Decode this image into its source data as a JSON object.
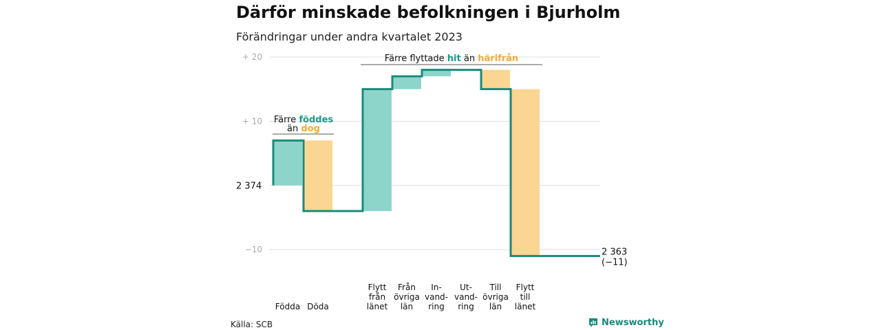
{
  "title": "Därför minskade befolkningen i Bjurholm",
  "subtitle": "Förändringar under andra kvartalet 2023",
  "source": "Källa: SCB",
  "brand": {
    "name": "Newsworthy",
    "icon": "newsworthy-logo-icon"
  },
  "colors": {
    "in": "#8dd5cb",
    "out": "#fbd592",
    "line": "#1a8a7a",
    "in_text": "#1a9a8a",
    "out_text": "#f2a93b",
    "grid": "#dddddd",
    "axis_text": "#aaaaaa"
  },
  "chart_data": {
    "type": "waterfall",
    "start_value": 2374,
    "end_value": 2363,
    "ylim": [
      -13,
      21
    ],
    "y_ticks": [
      {
        "value": 20,
        "label": "+ 20"
      },
      {
        "value": 10,
        "label": "+ 10"
      },
      {
        "value": 0,
        "label": ""
      },
      {
        "value": -10,
        "label": "−10"
      }
    ],
    "start_label": "2 374",
    "end_label": "2 363",
    "end_change_label": "(−11)",
    "steps": [
      {
        "label": [
          "Födda"
        ],
        "change": 7,
        "kind": "in"
      },
      {
        "label": [
          "Döda"
        ],
        "change": -11,
        "kind": "out"
      },
      {
        "label": [
          "Flytt",
          "från",
          "länet"
        ],
        "change": 19,
        "kind": "in"
      },
      {
        "label": [
          "Från",
          "övriga",
          "län"
        ],
        "change": 2,
        "kind": "in"
      },
      {
        "label": [
          "In-",
          "vand-",
          "ring"
        ],
        "change": 1,
        "kind": "in"
      },
      {
        "label": [
          "Ut-",
          "vand-",
          "ring"
        ],
        "change": 0,
        "kind": "out"
      },
      {
        "label": [
          "Till",
          "övriga",
          "län"
        ],
        "change": -3,
        "kind": "out"
      },
      {
        "label": [
          "Flytt",
          "till",
          "länet"
        ],
        "change": -26,
        "kind": "out"
      }
    ],
    "annotations": [
      {
        "parts": [
          {
            "text": "Färre ",
            "kind": "plain"
          },
          {
            "text": "föddes",
            "kind": "in"
          }
        ],
        "line2": [
          {
            "text": "än ",
            "kind": "plain"
          },
          {
            "text": "dog",
            "kind": "out"
          }
        ]
      },
      {
        "parts": [
          {
            "text": "Färre flyttade ",
            "kind": "plain"
          },
          {
            "text": "hit",
            "kind": "in"
          },
          {
            "text": " än ",
            "kind": "plain"
          },
          {
            "text": "härifrån",
            "kind": "out"
          }
        ]
      }
    ]
  }
}
